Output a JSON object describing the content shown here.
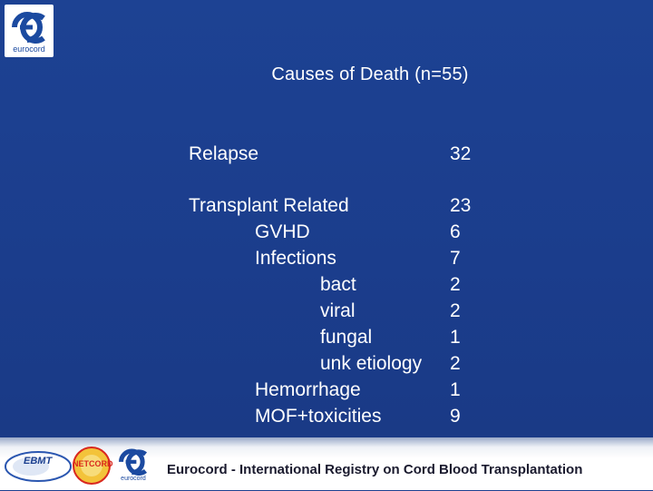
{
  "logo": {
    "word": "eurocord"
  },
  "title": "Causes of Death (n=55)",
  "rows": [
    {
      "label": "Relapse",
      "value": "32"
    },
    {
      "label": "Transplant Related",
      "value": "23"
    },
    {
      "label": "GVHD",
      "value": "6"
    },
    {
      "label": "Infections",
      "value": "7"
    },
    {
      "label": "bact",
      "value": "2"
    },
    {
      "label": "viral",
      "value": "2"
    },
    {
      "label": "fungal",
      "value": "1"
    },
    {
      "label": "unk etiology",
      "value": "2"
    },
    {
      "label": "Hemorrhage",
      "value": "1"
    },
    {
      "label": "MOF+toxicities",
      "value": "9"
    }
  ],
  "footer": {
    "text": "Eurocord - International Registry on Cord Blood Transplantation",
    "ebmt_label": "EBMT",
    "netcord_label": "NETCORD",
    "small_logo_word": "eurocord"
  }
}
